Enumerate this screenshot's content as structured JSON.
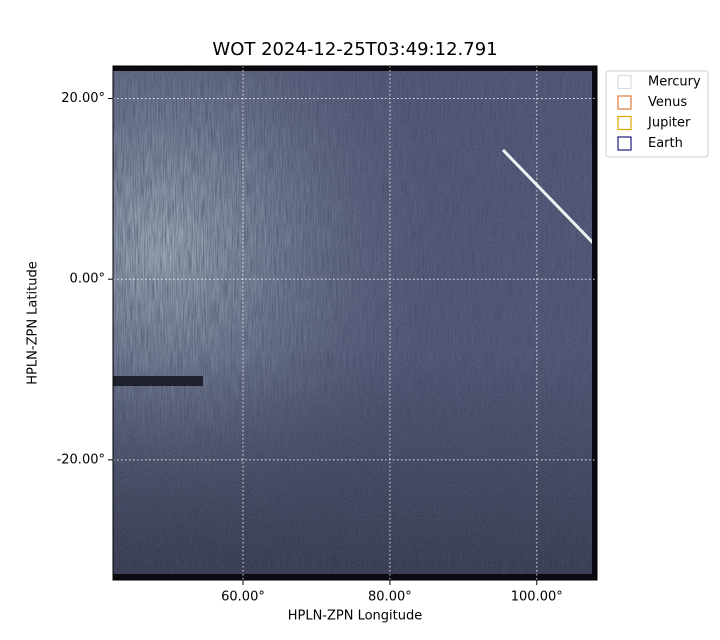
{
  "chart_data": {
    "type": "image",
    "title": "WOT 2024-12-25T03:49:12.791",
    "xlabel": "HPLN-ZPN Longitude",
    "ylabel": "HPLN-ZPN Latitude",
    "xlim": [
      42.3,
      108.2
    ],
    "ylim": [
      -33.3,
      23.6
    ],
    "xticks": [
      {
        "value": 60,
        "label": "60.00°"
      },
      {
        "value": 80,
        "label": "80.00°"
      },
      {
        "value": 100,
        "label": "100.00°"
      }
    ],
    "yticks": [
      {
        "value": -20,
        "label": "-20.00°"
      },
      {
        "value": 0,
        "label": "0.00°"
      },
      {
        "value": 20,
        "label": "20.00°"
      }
    ],
    "grid": true,
    "legend_position": "outside upper right",
    "legend_items": [
      {
        "name": "Mercury",
        "color": "#dddddd"
      },
      {
        "name": "Venus",
        "color": "#e07b39"
      },
      {
        "name": "Jupiter",
        "color": "#e0a800"
      },
      {
        "name": "Earth",
        "color": "#1a1a80"
      }
    ]
  }
}
